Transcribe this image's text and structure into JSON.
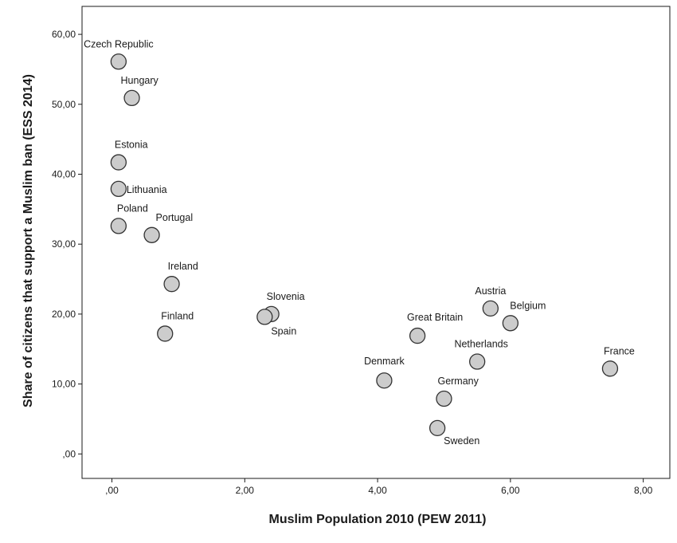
{
  "chart_data": {
    "type": "scatter",
    "title": "",
    "xlabel": "Muslim Population 2010 (PEW 2011)",
    "ylabel": "Share of citizens that support a Muslim ban (ESS 2014)",
    "xlim": [
      -0.45,
      8.4
    ],
    "ylim": [
      -3.5,
      64
    ],
    "x_ticks": [
      0,
      2,
      4,
      6,
      8
    ],
    "x_tick_labels": [
      ",00",
      "2,00",
      "4,00",
      "6,00",
      "8,00"
    ],
    "y_ticks": [
      0,
      10,
      20,
      30,
      40,
      50,
      60
    ],
    "y_tick_labels": [
      ",00",
      "10,00",
      "20,00",
      "30,00",
      "40,00",
      "50,00",
      "60,00"
    ],
    "grid": false,
    "points": [
      {
        "label": "Czech Republic",
        "x": 0.1,
        "y": 56.1
      },
      {
        "label": "Hungary",
        "x": 0.3,
        "y": 50.9
      },
      {
        "label": "Estonia",
        "x": 0.1,
        "y": 41.7
      },
      {
        "label": "Lithuania",
        "x": 0.1,
        "y": 37.9
      },
      {
        "label": "Poland",
        "x": 0.1,
        "y": 32.6
      },
      {
        "label": "Portugal",
        "x": 0.6,
        "y": 31.3
      },
      {
        "label": "Ireland",
        "x": 0.9,
        "y": 24.3
      },
      {
        "label": "Finland",
        "x": 0.8,
        "y": 17.2
      },
      {
        "label": "Slovenia",
        "x": 2.4,
        "y": 20.0
      },
      {
        "label": "Spain",
        "x": 2.3,
        "y": 19.6
      },
      {
        "label": "Great Britain",
        "x": 4.6,
        "y": 16.9
      },
      {
        "label": "Austria",
        "x": 5.7,
        "y": 20.8
      },
      {
        "label": "Belgium",
        "x": 6.0,
        "y": 18.7
      },
      {
        "label": "Netherlands",
        "x": 5.5,
        "y": 13.2
      },
      {
        "label": "Denmark",
        "x": 4.1,
        "y": 10.5
      },
      {
        "label": "Germany",
        "x": 5.0,
        "y": 7.9
      },
      {
        "label": "Sweden",
        "x": 4.9,
        "y": 3.7
      },
      {
        "label": "France",
        "x": 7.5,
        "y": 12.2
      }
    ]
  }
}
